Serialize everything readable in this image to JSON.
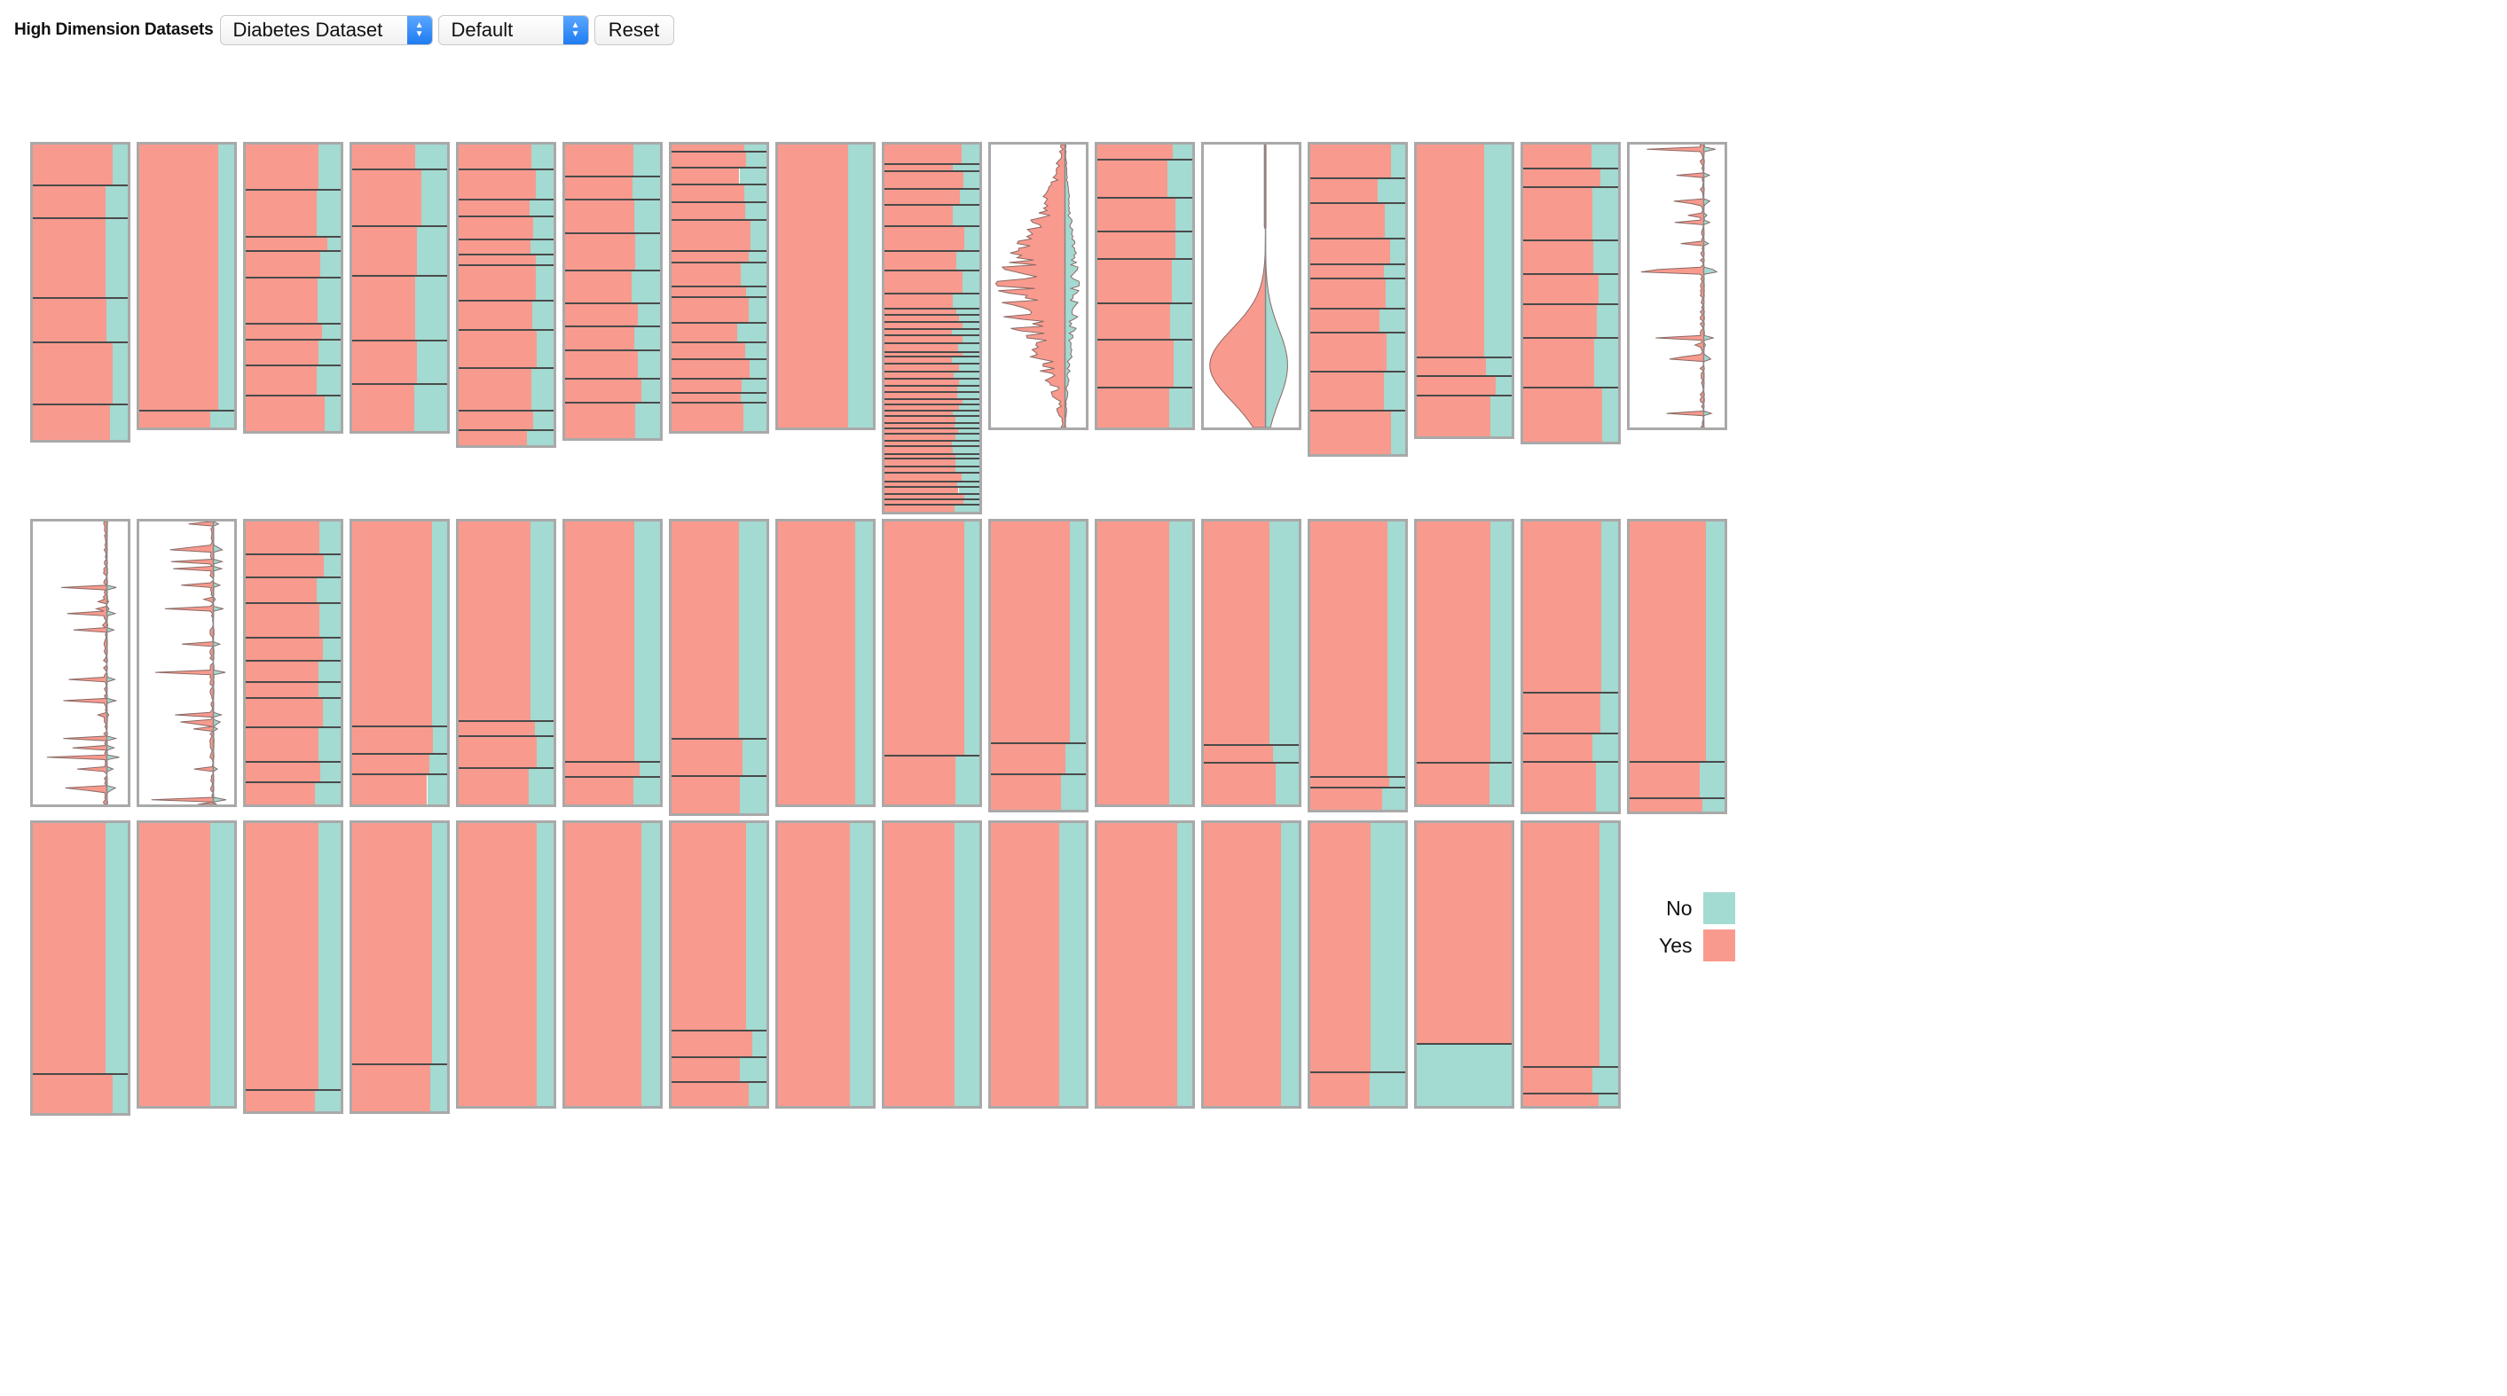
{
  "header": {
    "title": "High Dimension Datasets",
    "dataset_select": {
      "value": "Diabetes Dataset"
    },
    "order_select": {
      "value": "Default"
    },
    "reset_label": "Reset"
  },
  "legend": {
    "items": [
      {
        "label": "No",
        "color": "#a3dad1"
      },
      {
        "label": "Yes",
        "color": "#f99a8e"
      }
    ]
  },
  "colors": {
    "yes": "#f99a8e",
    "no": "#a3dad1",
    "frame": "#a9a9a9",
    "separator": "#4a4a4a"
  },
  "plots": {
    "rows": [
      {
        "cells": [
          {
            "type": "bars",
            "yes_fraction": 0.78,
            "categories": 6
          },
          {
            "type": "bars",
            "yes_fraction": 0.78,
            "categories": 2
          },
          {
            "type": "bars",
            "yes_fraction": 0.8,
            "categories": 9
          },
          {
            "type": "bars",
            "yes_fraction": 0.72,
            "categories": 6
          },
          {
            "type": "bars",
            "yes_fraction": 0.78,
            "categories": 12
          },
          {
            "type": "bars",
            "yes_fraction": 0.74,
            "categories": 10
          },
          {
            "type": "bars",
            "yes_fraction": 0.76,
            "categories": 16
          },
          {
            "type": "bars",
            "yes_fraction": 0.78,
            "categories": 1
          },
          {
            "type": "bars",
            "yes_fraction": 0.78,
            "categories": 40
          },
          {
            "type": "distribution",
            "profile": "spiky"
          },
          {
            "type": "bars",
            "yes_fraction": 0.78,
            "categories": 8
          },
          {
            "type": "distribution",
            "profile": "smooth"
          },
          {
            "type": "bars",
            "yes_fraction": 0.78,
            "categories": 10
          },
          {
            "type": "bars",
            "yes_fraction": 0.78,
            "categories": 4
          },
          {
            "type": "bars",
            "yes_fraction": 0.78,
            "categories": 8
          },
          {
            "type": "distribution",
            "profile": "sparse"
          }
        ]
      },
      {
        "cells": [
          {
            "type": "distribution",
            "profile": "sparse"
          },
          {
            "type": "distribution",
            "profile": "sparse"
          },
          {
            "type": "bars",
            "yes_fraction": 0.78,
            "categories": 11
          },
          {
            "type": "bars",
            "yes_fraction": 0.78,
            "categories": 4
          },
          {
            "type": "bars",
            "yes_fraction": 0.78,
            "categories": 4
          },
          {
            "type": "bars",
            "yes_fraction": 0.74,
            "categories": 3
          },
          {
            "type": "bars",
            "yes_fraction": 0.78,
            "categories": 3
          },
          {
            "type": "bars",
            "yes_fraction": 0.78,
            "categories": 1
          },
          {
            "type": "bars",
            "yes_fraction": 0.78,
            "categories": 2
          },
          {
            "type": "bars",
            "yes_fraction": 0.78,
            "categories": 3
          },
          {
            "type": "bars",
            "yes_fraction": 0.78,
            "categories": 1
          },
          {
            "type": "bars",
            "yes_fraction": 0.74,
            "categories": 3
          },
          {
            "type": "bars",
            "yes_fraction": 0.78,
            "categories": 3
          },
          {
            "type": "bars",
            "yes_fraction": 0.78,
            "categories": 2
          },
          {
            "type": "bars",
            "yes_fraction": 0.78,
            "categories": 4
          },
          {
            "type": "bars",
            "yes_fraction": 0.78,
            "categories": 3
          }
        ]
      },
      {
        "cells": [
          {
            "type": "bars",
            "yes_fraction": 0.78,
            "categories": 2
          },
          {
            "type": "bars",
            "yes_fraction": 0.78,
            "categories": 1
          },
          {
            "type": "bars",
            "yes_fraction": 0.78,
            "categories": 2
          },
          {
            "type": "bars",
            "yes_fraction": 0.78,
            "categories": 2
          },
          {
            "type": "bars",
            "yes_fraction": 0.78,
            "categories": 1
          },
          {
            "type": "bars",
            "yes_fraction": 0.78,
            "categories": 1
          },
          {
            "type": "bars",
            "yes_fraction": 0.78,
            "categories": 4
          },
          {
            "type": "bars",
            "yes_fraction": 0.78,
            "categories": 1
          },
          {
            "type": "bars",
            "yes_fraction": 0.78,
            "categories": 1
          },
          {
            "type": "bars",
            "yes_fraction": 0.78,
            "categories": 1
          },
          {
            "type": "bars",
            "yes_fraction": 0.78,
            "categories": 1
          },
          {
            "type": "bars",
            "yes_fraction": 0.78,
            "categories": 1
          },
          {
            "type": "bars",
            "yes_fraction": 0.64,
            "categories": 2
          },
          {
            "type": "bars",
            "yes_fraction": 1.0,
            "categories": 2
          },
          {
            "type": "bars",
            "yes_fraction": 0.78,
            "categories": 3
          }
        ]
      }
    ]
  }
}
